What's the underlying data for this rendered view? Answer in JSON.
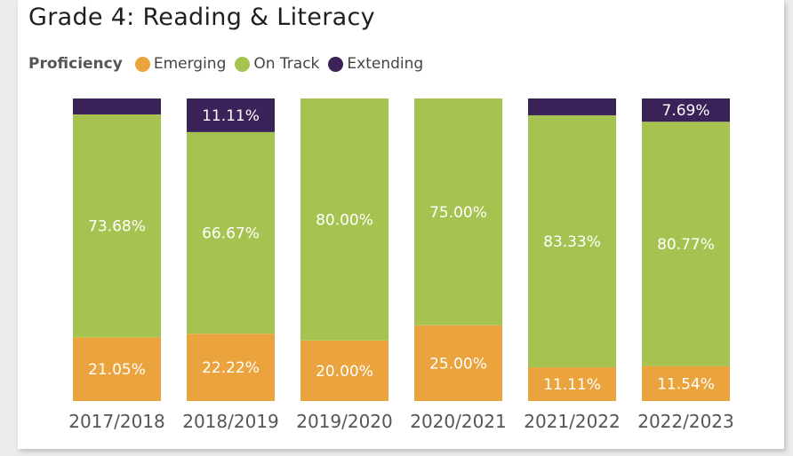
{
  "chart_data": {
    "type": "bar",
    "stacked": true,
    "percent_scale": true,
    "title": "Grade 4: Reading & Literacy",
    "legend_title": "Proficiency",
    "legend_position": "top-left",
    "categories": [
      "2017/2018",
      "2018/2019",
      "2019/2020",
      "2020/2021",
      "2021/2022",
      "2022/2023"
    ],
    "series": [
      {
        "name": "Emerging",
        "color": "#eba33e",
        "values": [
          21.05,
          22.22,
          20.0,
          25.0,
          11.11,
          11.54
        ],
        "labels": [
          "21.05%",
          "22.22%",
          "20.00%",
          "25.00%",
          "11.11%",
          "11.54%"
        ]
      },
      {
        "name": "On Track",
        "color": "#a6c351",
        "values": [
          73.68,
          66.67,
          80.0,
          75.0,
          83.33,
          80.77
        ],
        "labels": [
          "73.68%",
          "66.67%",
          "80.00%",
          "75.00%",
          "83.33%",
          "80.77%"
        ]
      },
      {
        "name": "Extending",
        "color": "#3b2259",
        "values": [
          5.26,
          11.11,
          0,
          0,
          5.56,
          7.69
        ],
        "labels": [
          "",
          "11.11%",
          "",
          "",
          "",
          "7.69%"
        ]
      }
    ],
    "ylim": [
      0,
      100
    ],
    "grid": false
  }
}
